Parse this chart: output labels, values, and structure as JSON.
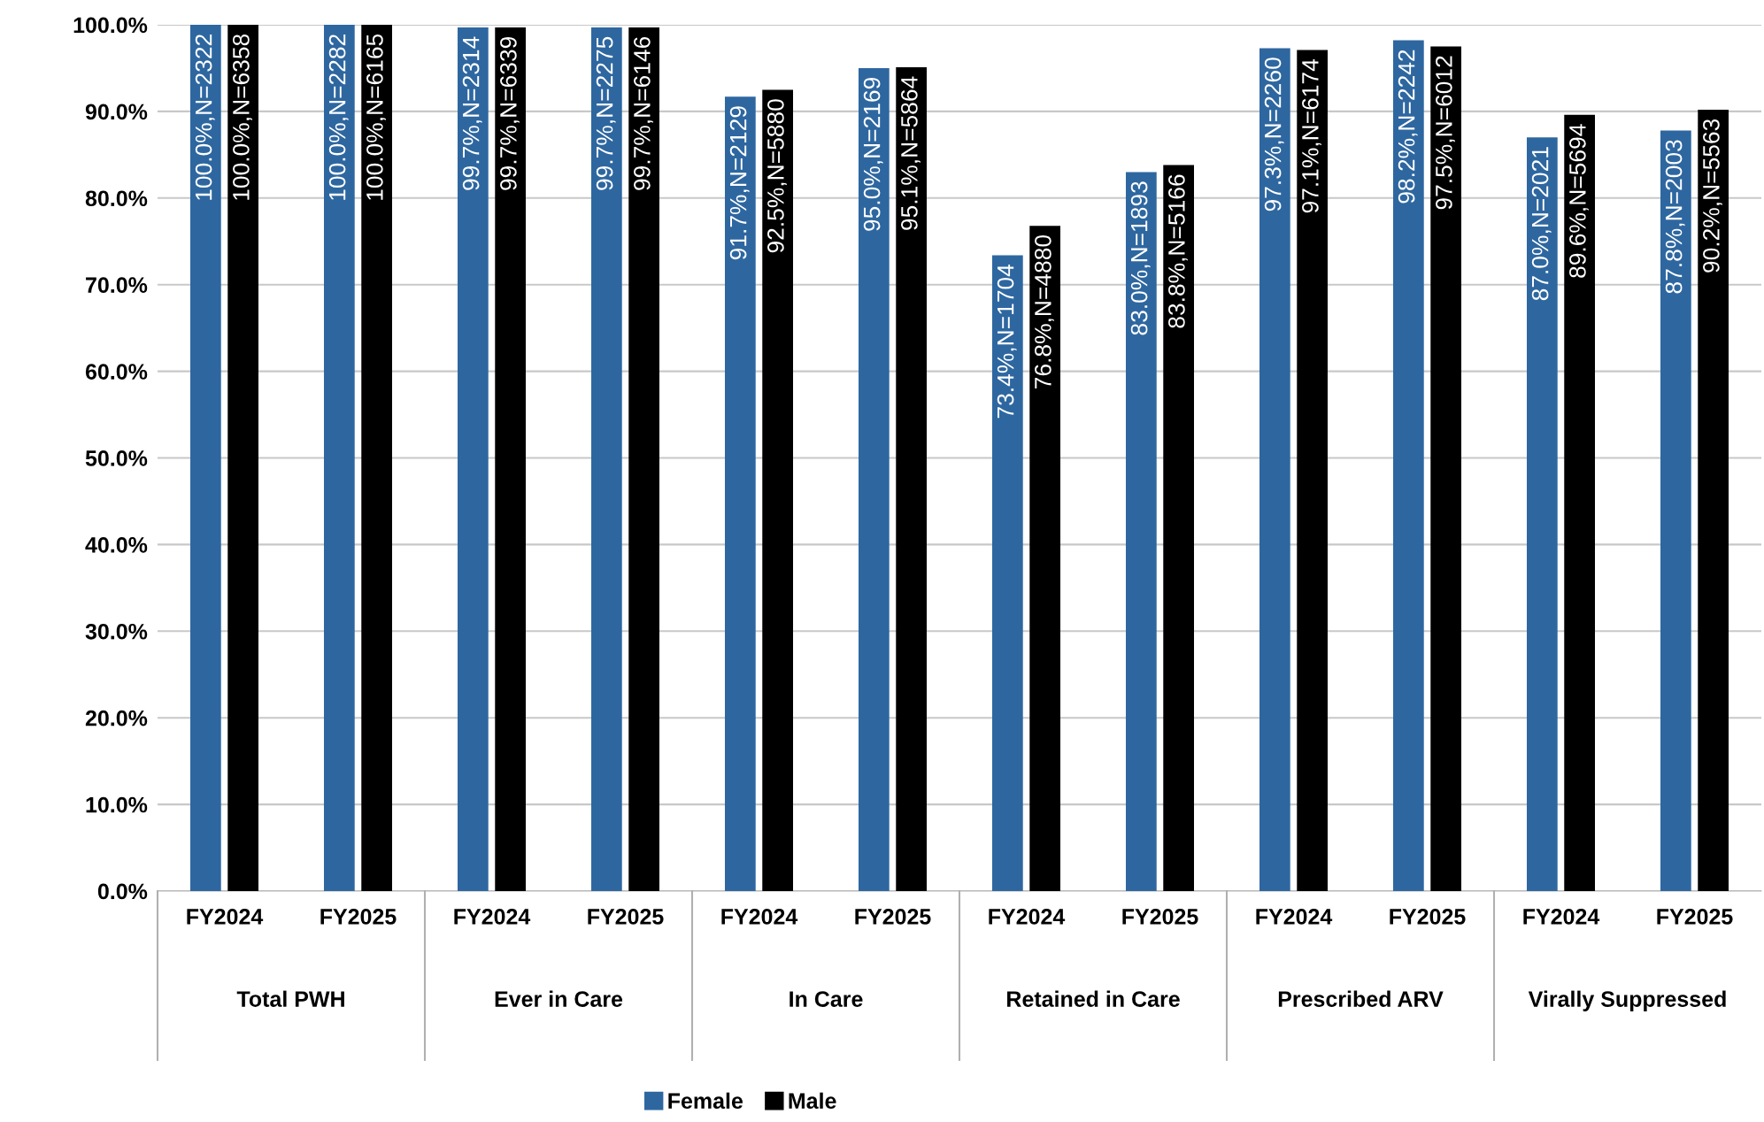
{
  "chart_data": {
    "type": "bar",
    "categories": [
      "FY2024",
      "FY2025",
      "FY2024",
      "FY2025",
      "FY2024",
      "FY2025",
      "FY2024",
      "FY2025",
      "FY2024",
      "FY2025",
      "FY2024",
      "FY2025"
    ],
    "annotations": [
      "Total PWH",
      "Ever in Care",
      "In Care",
      "Retained in Care",
      "Prescribed ARV",
      "Virally Suppressed"
    ],
    "series": [
      {
        "name": "Female",
        "color": "#2e67a0",
        "values": [
          100.0,
          100.0,
          99.7,
          99.7,
          91.7,
          95.0,
          73.4,
          83.0,
          97.3,
          98.2,
          87.0,
          87.8
        ],
        "value_labels": [
          "100.0%,N=2322",
          "100.0%,N=2282",
          "99.7%,N=2314",
          "99.7%,N=2275",
          "91.7%,N=2129",
          "95.0%,N=2169",
          "73.4%,N=1704",
          "83.0%,N=1893",
          "97.3%,N=2260",
          "98.2%,N=2242",
          "87.0%,N=2021",
          "87.8%,N=2003"
        ]
      },
      {
        "name": "Male",
        "color": "#000000",
        "values": [
          100.0,
          100.0,
          99.7,
          99.7,
          92.5,
          95.1,
          76.8,
          83.8,
          97.1,
          97.5,
          89.6,
          90.2
        ],
        "value_labels": [
          "100.0%,N=6358",
          "100.0%,N=6165",
          "99.7%,N=6339",
          "99.7%,N=6146",
          "92.5%,N=5880",
          "95.1%,N=5864",
          "76.8%,N=4880",
          "83.8%,N=5166",
          "97.1%,N=6174",
          "97.5%,N=6012",
          "89.6%,N=5694",
          "90.2%,N=5563"
        ]
      }
    ],
    "ylim": [
      0,
      100
    ],
    "yticks": [
      {
        "value": 0,
        "label": "0.0%"
      },
      {
        "value": 10,
        "label": "10.0%"
      },
      {
        "value": 20,
        "label": "20.0%"
      },
      {
        "value": 30,
        "label": "30.0%"
      },
      {
        "value": 40,
        "label": "40.0%"
      },
      {
        "value": 50,
        "label": "50.0%"
      },
      {
        "value": 60,
        "label": "60.0%"
      },
      {
        "value": 70,
        "label": "70.0%"
      },
      {
        "value": 80,
        "label": "80.0%"
      },
      {
        "value": 90,
        "label": "90.0%"
      },
      {
        "value": 100,
        "label": "100.0%"
      }
    ],
    "grid": "y",
    "legend": "bottom"
  }
}
